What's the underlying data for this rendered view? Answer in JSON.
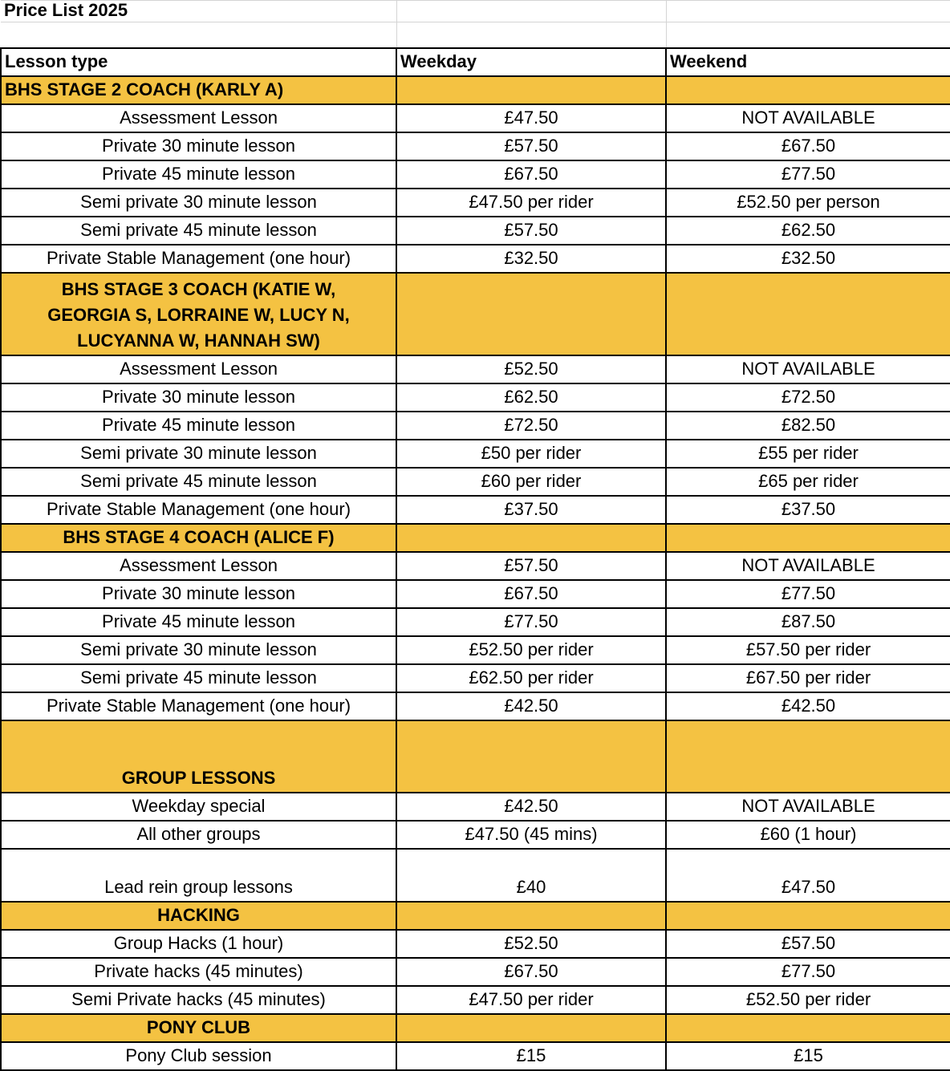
{
  "title": "Price List 2025",
  "accent_color": "#F4C242",
  "headers": [
    "Lesson type",
    "Weekday",
    "Weekend"
  ],
  "rows": [
    {
      "type": "section",
      "label": "BHS STAGE 2 COACH (KARLY A)",
      "align": "left"
    },
    {
      "type": "item",
      "cells": [
        "Assessment Lesson",
        "£47.50",
        "NOT AVAILABLE"
      ]
    },
    {
      "type": "item",
      "cells": [
        "Private 30 minute lesson",
        "£57.50",
        "£67.50"
      ]
    },
    {
      "type": "item",
      "cells": [
        "Private 45 minute lesson",
        "£67.50",
        "£77.50"
      ]
    },
    {
      "type": "item",
      "cells": [
        "Semi private 30 minute lesson",
        "£47.50 per rider",
        "£52.50 per person"
      ]
    },
    {
      "type": "item",
      "cells": [
        "Semi private 45 minute lesson",
        "£57.50",
        "£62.50"
      ]
    },
    {
      "type": "item",
      "cells": [
        "Private Stable Management (one hour)",
        "£32.50",
        "£32.50"
      ]
    },
    {
      "type": "section",
      "label": "BHS STAGE 3 COACH (KATIE W, GEORGIA S, LORRAINE W, LUCY N, LUCYANNA W, HANNAH SW)",
      "align": "center"
    },
    {
      "type": "item",
      "cells": [
        "Assessment Lesson",
        "£52.50",
        "NOT AVAILABLE"
      ]
    },
    {
      "type": "item",
      "cells": [
        "Private 30 minute lesson",
        "£62.50",
        "£72.50"
      ]
    },
    {
      "type": "item",
      "cells": [
        "Private 45 minute lesson",
        "£72.50",
        "£82.50"
      ]
    },
    {
      "type": "item",
      "cells": [
        "Semi private 30 minute lesson",
        "£50 per rider",
        "£55 per rider"
      ]
    },
    {
      "type": "item",
      "cells": [
        "Semi private 45 minute lesson",
        "£60 per rider",
        "£65 per rider"
      ]
    },
    {
      "type": "item",
      "cells": [
        "Private Stable Management (one hour)",
        "£37.50",
        "£37.50"
      ]
    },
    {
      "type": "section",
      "label": "BHS STAGE 4 COACH (ALICE F)",
      "align": "center"
    },
    {
      "type": "item",
      "cells": [
        "Assessment Lesson",
        "£57.50",
        "NOT AVAILABLE"
      ]
    },
    {
      "type": "item",
      "cells": [
        "Private 30 minute lesson",
        "£67.50",
        "£77.50"
      ]
    },
    {
      "type": "item",
      "cells": [
        "Private 45 minute lesson",
        "£77.50",
        "£87.50"
      ]
    },
    {
      "type": "item",
      "cells": [
        "Semi private 30 minute lesson",
        "£52.50 per rider",
        "£57.50 per rider"
      ]
    },
    {
      "type": "item",
      "cells": [
        "Semi private 45 minute lesson",
        "£62.50 per rider",
        "£67.50 per rider"
      ]
    },
    {
      "type": "item",
      "cells": [
        "Private Stable Management (one hour)",
        "£42.50",
        "£42.50"
      ]
    },
    {
      "type": "section",
      "label": "GROUP LESSONS",
      "align": "center"
    },
    {
      "type": "item",
      "cells": [
        "Weekday special",
        "£42.50",
        "NOT AVAILABLE"
      ]
    },
    {
      "type": "item",
      "cells": [
        "All other groups",
        "£47.50 (45 mins)",
        "£60 (1 hour)"
      ]
    },
    {
      "type": "item",
      "cells": [
        "Lead rein group lessons",
        "£40",
        "£47.50"
      ]
    },
    {
      "type": "section",
      "label": "HACKING",
      "align": "center"
    },
    {
      "type": "item",
      "cells": [
        "Group Hacks (1 hour)",
        "£52.50",
        "£57.50"
      ]
    },
    {
      "type": "item",
      "cells": [
        "Private hacks (45 minutes)",
        "£67.50",
        "£77.50"
      ]
    },
    {
      "type": "item",
      "cells": [
        "Semi Private hacks (45 minutes)",
        "£47.50 per rider",
        "£52.50 per rider"
      ]
    },
    {
      "type": "section",
      "label": "PONY CLUB",
      "align": "center"
    },
    {
      "type": "item",
      "cells": [
        "Pony Club session",
        "£15",
        "£15"
      ]
    }
  ]
}
